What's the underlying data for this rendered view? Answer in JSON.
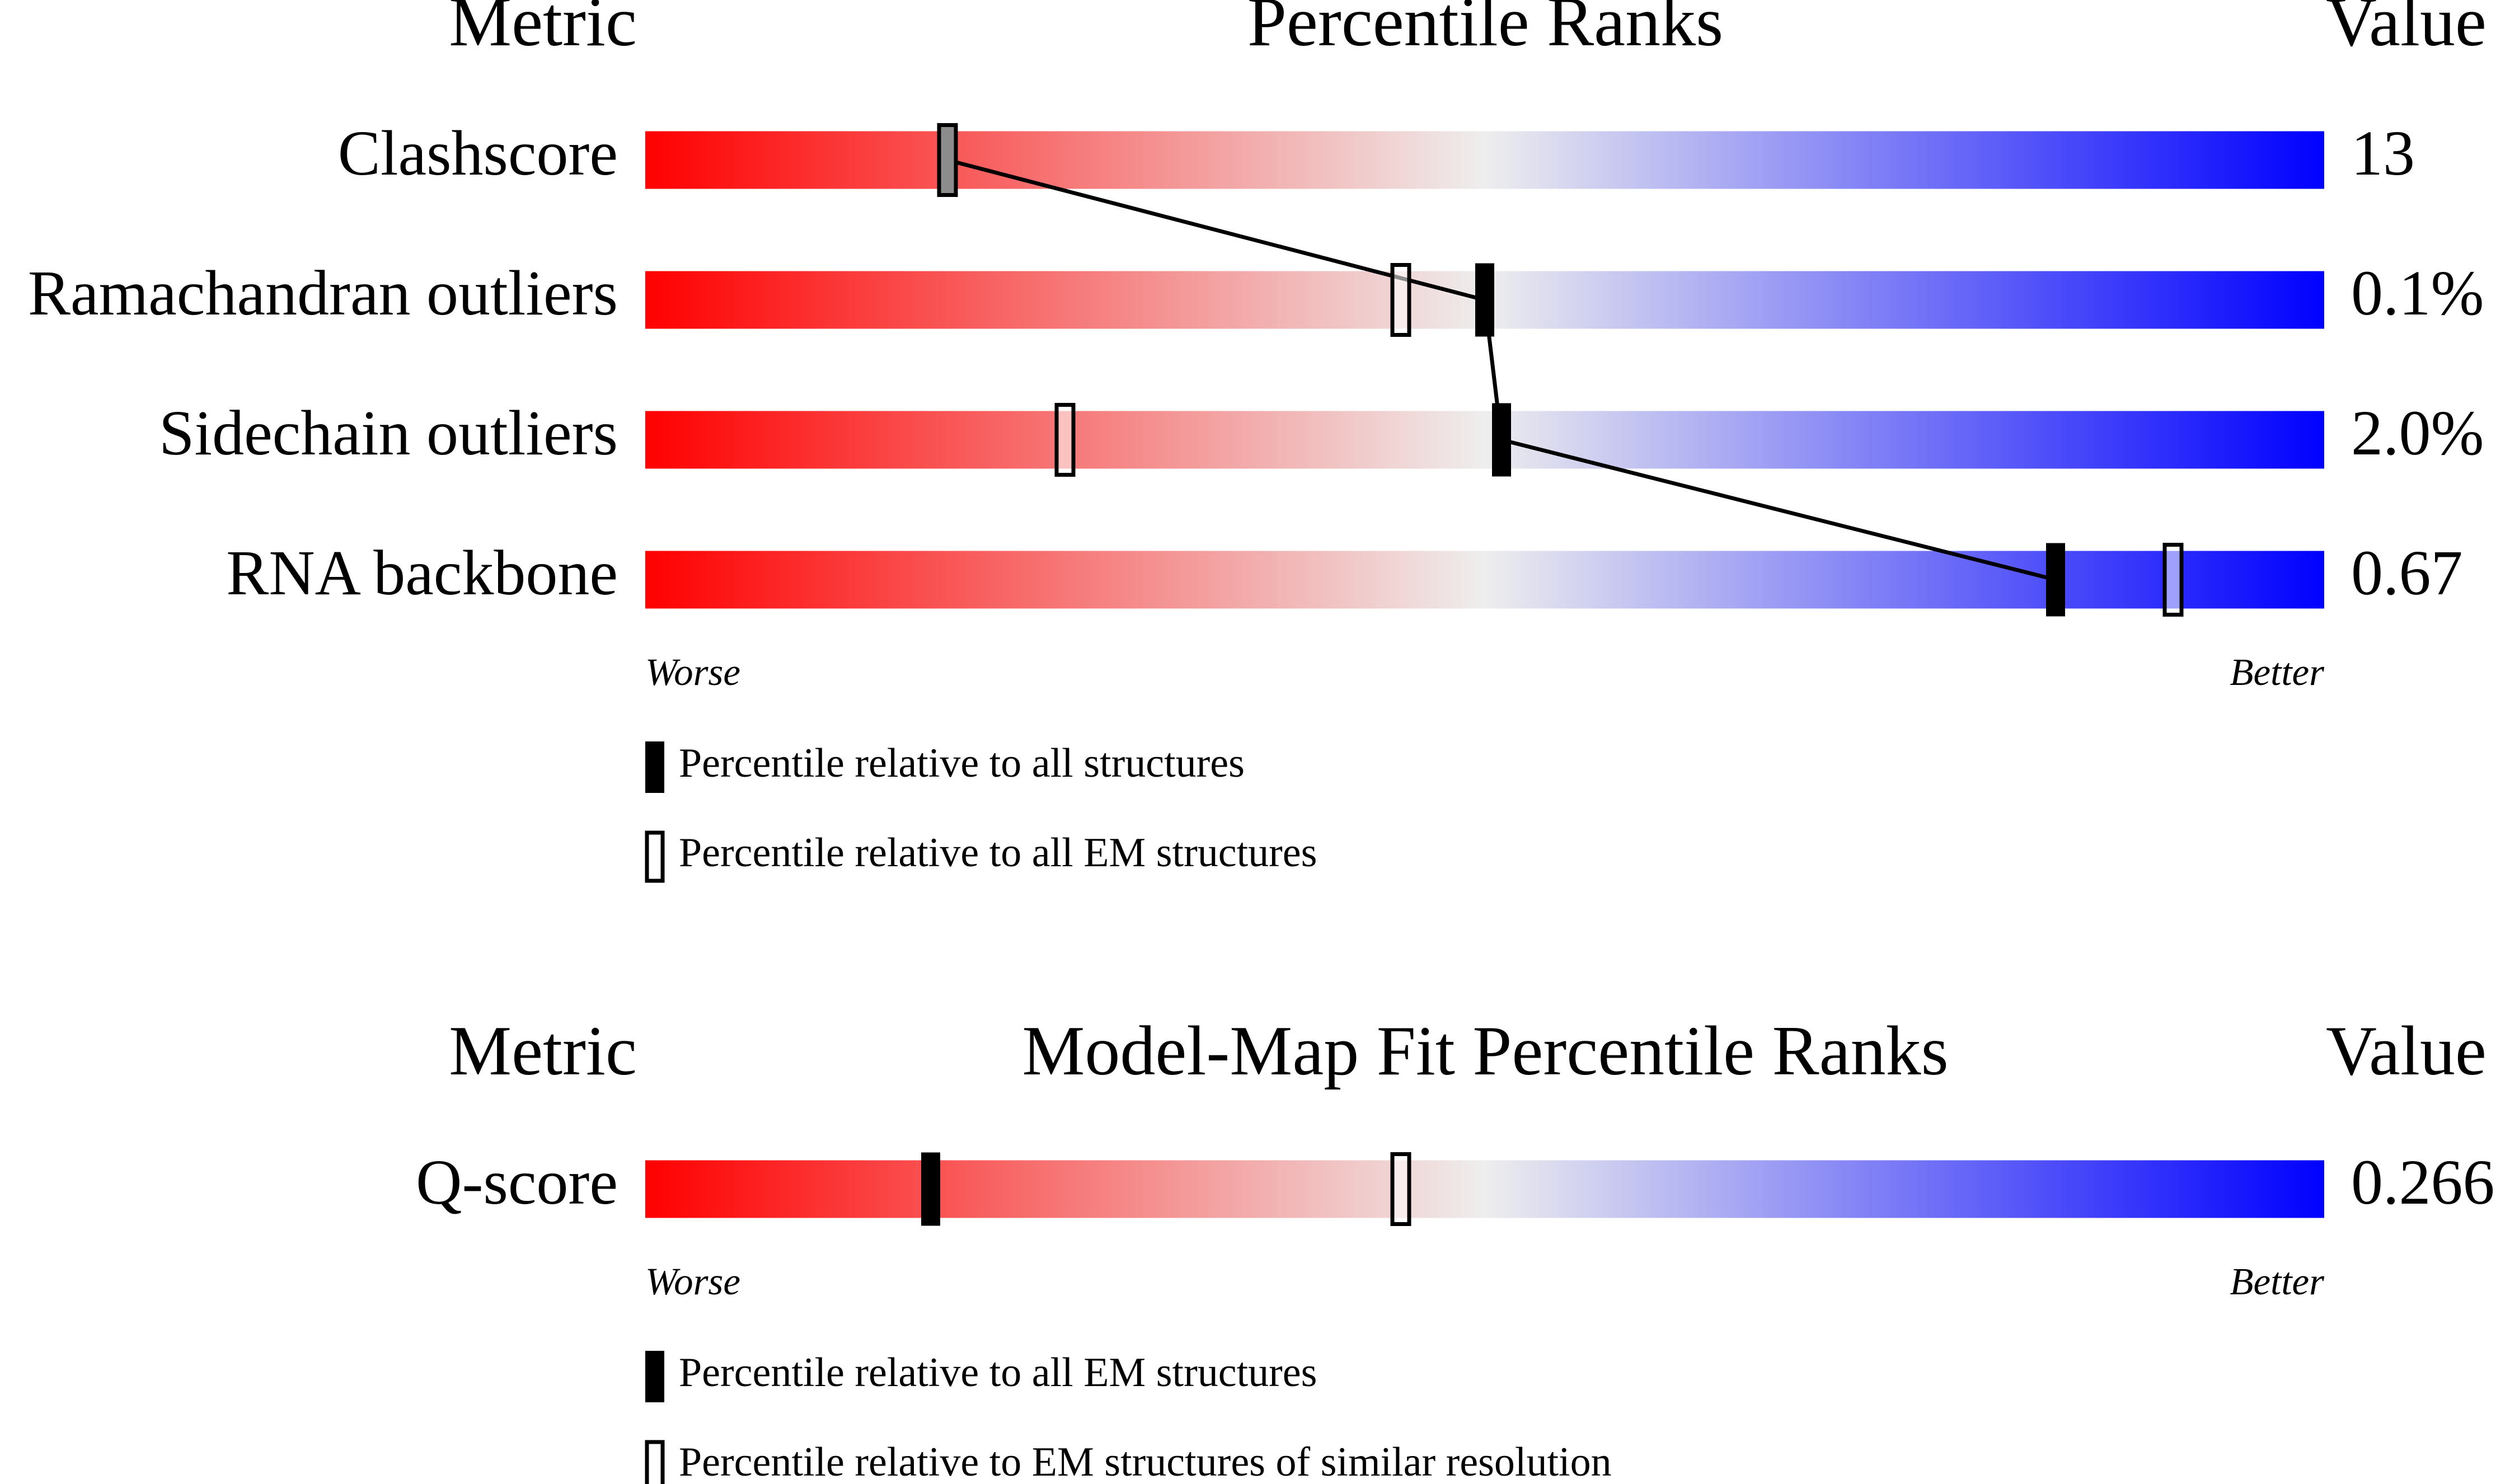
{
  "chart_data": [
    {
      "type": "slider",
      "title": "Percentile Ranks",
      "metric_header": "Metric",
      "value_header": "Value",
      "categories": [
        "Clashscore",
        "Ramachandran outliers",
        "Sidechain outliers",
        "RNA backbone"
      ],
      "metric_values": [
        "13",
        "0.1%",
        "2.0%",
        "0.67"
      ],
      "series": [
        {
          "name": "Percentile relative to all structures",
          "style": "filled",
          "color": "#000000",
          "values": [
            18,
            50,
            51,
            84
          ]
        },
        {
          "name": "Percentile relative to all EM structures",
          "style": "open",
          "color": "#000000",
          "values": [
            18,
            45,
            25,
            91
          ]
        }
      ],
      "xlim": [
        0,
        100
      ],
      "low_label": "Worse",
      "high_label": "Better",
      "colors": [
        "#ff0000",
        "#eeeeee",
        "#0000ff"
      ],
      "connect": "filled"
    },
    {
      "type": "slider",
      "title": "Model-Map Fit Percentile Ranks",
      "metric_header": "Metric",
      "value_header": "Value",
      "categories": [
        "Q-score"
      ],
      "metric_values": [
        "0.266"
      ],
      "series": [
        {
          "name": "Percentile relative to all EM structures",
          "style": "filled",
          "color": "#000000",
          "values": [
            17
          ]
        },
        {
          "name": "Percentile relative to EM structures of similar resolution",
          "style": "open",
          "color": "#000000",
          "values": [
            45
          ]
        }
      ],
      "xlim": [
        0,
        100
      ],
      "low_label": "Worse",
      "high_label": "Better",
      "colors": [
        "#ff0000",
        "#eeeeee",
        "#0000ff"
      ],
      "connect": "none"
    }
  ]
}
